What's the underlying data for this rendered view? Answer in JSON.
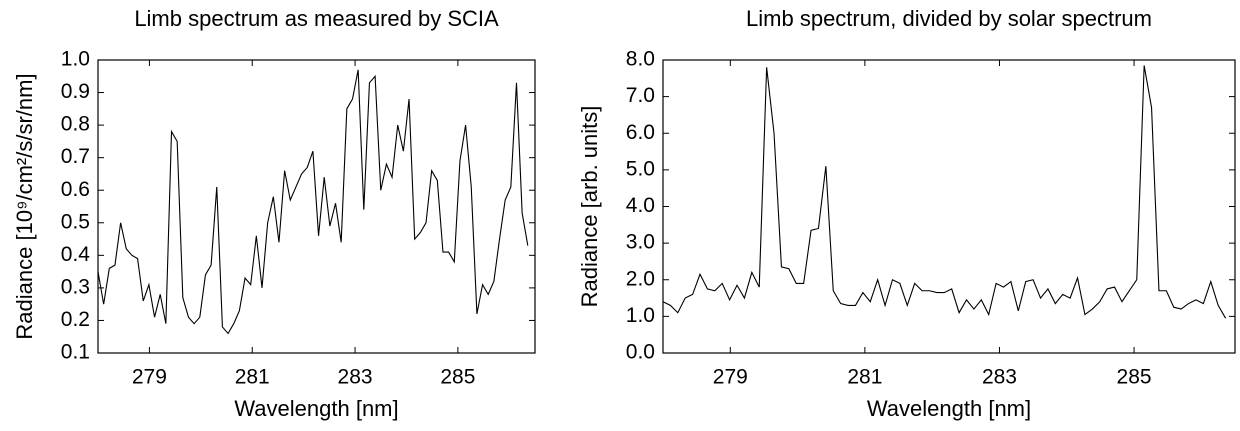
{
  "chart_data": [
    {
      "type": "line",
      "title": "Limb spectrum as measured by SCIA",
      "x_label": "Wavelength [nm]",
      "y_label": "Radiance [10⁹/cm²/s/sr/nm]",
      "x": [
        278.0,
        278.11,
        278.22,
        278.33,
        278.44,
        278.55,
        278.66,
        278.77,
        278.88,
        278.99,
        279.1,
        279.21,
        279.32,
        279.43,
        279.54,
        279.65,
        279.76,
        279.87,
        279.98,
        280.09,
        280.2,
        280.31,
        280.42,
        280.53,
        280.64,
        280.75,
        280.86,
        280.97,
        281.08,
        281.19,
        281.3,
        281.41,
        281.52,
        281.63,
        281.74,
        281.85,
        281.96,
        282.07,
        282.18,
        282.29,
        282.4,
        282.51,
        282.62,
        282.73,
        282.84,
        282.95,
        283.06,
        283.17,
        283.28,
        283.39,
        283.5,
        283.61,
        283.72,
        283.83,
        283.94,
        284.05,
        284.16,
        284.27,
        284.38,
        284.49,
        284.6,
        284.71,
        284.82,
        284.93,
        285.04,
        285.15,
        285.26,
        285.37,
        285.48,
        285.59,
        285.7,
        285.81,
        285.92,
        286.03,
        286.14,
        286.25,
        286.36
      ],
      "series": [
        {
          "color": "#000000",
          "values": [
            0.35,
            0.25,
            0.36,
            0.37,
            0.5,
            0.42,
            0.4,
            0.39,
            0.26,
            0.31,
            0.21,
            0.28,
            0.19,
            0.78,
            0.75,
            0.27,
            0.21,
            0.19,
            0.21,
            0.34,
            0.37,
            0.61,
            0.18,
            0.16,
            0.19,
            0.23,
            0.33,
            0.31,
            0.46,
            0.3,
            0.5,
            0.58,
            0.44,
            0.66,
            0.57,
            0.61,
            0.65,
            0.67,
            0.72,
            0.46,
            0.64,
            0.49,
            0.56,
            0.44,
            0.85,
            0.88,
            0.97,
            0.54,
            0.93,
            0.95,
            0.6,
            0.68,
            0.64,
            0.8,
            0.72,
            0.88,
            0.45,
            0.47,
            0.5,
            0.66,
            0.63,
            0.41,
            0.41,
            0.38,
            0.69,
            0.8,
            0.61,
            0.22,
            0.31,
            0.28,
            0.32,
            0.45,
            0.57,
            0.61,
            0.93,
            0.53,
            0.43
          ]
        }
      ],
      "xlim": [
        278.0,
        286.5
      ],
      "xticks": [
        279,
        281,
        283,
        285
      ],
      "ylim": [
        0.1,
        1.0
      ],
      "yticks": [
        0.1,
        0.2,
        0.3,
        0.4,
        0.5,
        0.6,
        0.7,
        0.8,
        0.9,
        {
          "value": 1.0,
          "label": "1.0"
        }
      ],
      "grid": false
    },
    {
      "type": "line",
      "title": "Limb spectrum, divided by solar spectrum",
      "x_label": "Wavelength [nm]",
      "y_label": "Radiance [arb. units]",
      "x": [
        278.0,
        278.11,
        278.22,
        278.33,
        278.44,
        278.55,
        278.66,
        278.77,
        278.88,
        278.99,
        279.1,
        279.21,
        279.32,
        279.43,
        279.54,
        279.65,
        279.76,
        279.87,
        279.98,
        280.09,
        280.2,
        280.31,
        280.42,
        280.53,
        280.64,
        280.75,
        280.86,
        280.97,
        281.08,
        281.19,
        281.3,
        281.41,
        281.52,
        281.63,
        281.74,
        281.85,
        281.96,
        282.07,
        282.18,
        282.29,
        282.4,
        282.51,
        282.62,
        282.73,
        282.84,
        282.95,
        283.06,
        283.17,
        283.28,
        283.39,
        283.5,
        283.61,
        283.72,
        283.83,
        283.94,
        284.05,
        284.16,
        284.27,
        284.38,
        284.49,
        284.6,
        284.71,
        284.82,
        284.93,
        285.04,
        285.15,
        285.26,
        285.37,
        285.48,
        285.59,
        285.7,
        285.81,
        285.92,
        286.03,
        286.14,
        286.25,
        286.36
      ],
      "series": [
        {
          "color": "#000000",
          "values": [
            1.4,
            1.3,
            1.1,
            1.5,
            1.6,
            2.15,
            1.75,
            1.7,
            1.9,
            1.45,
            1.85,
            1.5,
            2.2,
            1.8,
            7.8,
            6.0,
            2.35,
            2.3,
            1.9,
            1.9,
            3.35,
            3.4,
            5.1,
            1.7,
            1.35,
            1.3,
            1.3,
            1.65,
            1.4,
            2.0,
            1.3,
            2.0,
            1.9,
            1.3,
            1.9,
            1.7,
            1.7,
            1.65,
            1.65,
            1.75,
            1.1,
            1.45,
            1.2,
            1.45,
            1.05,
            1.9,
            1.8,
            1.95,
            1.15,
            1.95,
            2.0,
            1.5,
            1.75,
            1.35,
            1.6,
            1.5,
            2.05,
            1.05,
            1.2,
            1.4,
            1.75,
            1.8,
            1.4,
            1.7,
            2.0,
            7.85,
            6.7,
            1.7,
            1.7,
            1.25,
            1.2,
            1.35,
            1.45,
            1.35,
            1.95,
            1.3,
            0.95
          ]
        }
      ],
      "xlim": [
        278.0,
        286.5
      ],
      "xticks": [
        279,
        281,
        283,
        285
      ],
      "ylim": [
        0,
        8
      ],
      "yticks": [
        {
          "value": 0,
          "label": "0.0"
        },
        {
          "value": 1,
          "label": "1.0"
        },
        {
          "value": 2,
          "label": "2.0"
        },
        {
          "value": 3,
          "label": "3.0"
        },
        {
          "value": 4,
          "label": "4.0"
        },
        {
          "value": 5,
          "label": "5.0"
        },
        {
          "value": 6,
          "label": "6.0"
        },
        {
          "value": 7,
          "label": "7.0"
        },
        {
          "value": 8,
          "label": "8.0"
        }
      ],
      "grid": false
    }
  ]
}
